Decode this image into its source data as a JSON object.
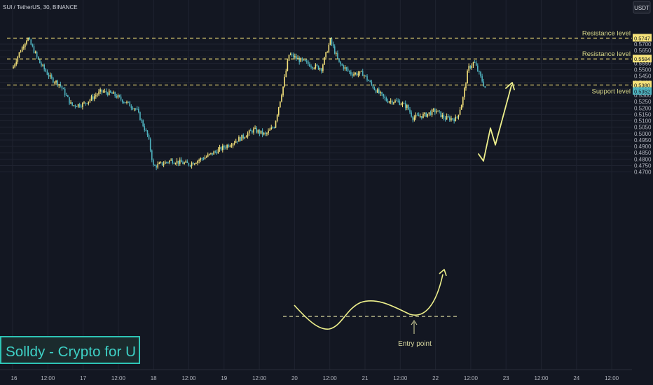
{
  "header": {
    "symbol": "SUI / TetherUS, 30, BINANCE",
    "currency_label": "USDT"
  },
  "branding": {
    "watermark": "Solldy - Crypto for U"
  },
  "colors": {
    "bg": "#131722",
    "up": "#f5e27a",
    "down": "#4fb3bf",
    "level": "#f5e27a",
    "text": "#b2b5be",
    "arrow": "#eef08c",
    "brand": "#2ec4b6"
  },
  "price_axis": {
    "ticks": [
      "0.5700",
      "0.5650",
      "0.5600",
      "0.5550",
      "0.5500",
      "0.5450",
      "0.5400",
      "0.5350",
      "0.5300",
      "0.5250",
      "0.5200",
      "0.5150",
      "0.5100",
      "0.5050",
      "0.5000",
      "0.4950",
      "0.4900",
      "0.4850",
      "0.4800",
      "0.4750",
      "0.4700"
    ],
    "badges": [
      "0.5747",
      "0.5584",
      "0.5380",
      "0.5352"
    ]
  },
  "time_axis": {
    "labels": [
      "16",
      "12:00",
      "17",
      "12:00",
      "18",
      "12:00",
      "19",
      "12:00",
      "20",
      "12:00",
      "21",
      "12:00",
      "22",
      "12:00",
      "23",
      "12:00",
      "24",
      "12:00"
    ]
  },
  "levels": [
    {
      "label": "Resistance level",
      "price": 0.5747
    },
    {
      "label": "Resistance level",
      "price": 0.5584
    },
    {
      "label": "Support level",
      "price": 0.538
    }
  ],
  "annotations": {
    "entry_point": "Entry point"
  },
  "chart_data": {
    "type": "candlestick",
    "symbol": "SUI / TetherUS",
    "interval": "30",
    "exchange": "BINANCE",
    "ylim": [
      0.4685,
      0.5835
    ],
    "grid": true,
    "close_path_points": [
      {
        "t": "16 00:00",
        "price": 0.551
      },
      {
        "t": "16 02:00",
        "price": 0.562
      },
      {
        "t": "16 05:00",
        "price": 0.575
      },
      {
        "t": "16 07:00",
        "price": 0.566
      },
      {
        "t": "16 09:00",
        "price": 0.556
      },
      {
        "t": "16 13:00",
        "price": 0.543
      },
      {
        "t": "16 16:00",
        "price": 0.5385
      },
      {
        "t": "16 20:00",
        "price": 0.522
      },
      {
        "t": "17 00:00",
        "price": 0.523
      },
      {
        "t": "17 06:00",
        "price": 0.533
      },
      {
        "t": "17 10:00",
        "price": 0.531
      },
      {
        "t": "17 14:00",
        "price": 0.525
      },
      {
        "t": "17 18:00",
        "price": 0.519
      },
      {
        "t": "17 22:00",
        "price": 0.497
      },
      {
        "t": "18 00:00",
        "price": 0.474
      },
      {
        "t": "18 06:00",
        "price": 0.479
      },
      {
        "t": "18 12:00",
        "price": 0.476
      },
      {
        "t": "18 18:00",
        "price": 0.482
      },
      {
        "t": "19 00:00",
        "price": 0.4895
      },
      {
        "t": "19 06:00",
        "price": 0.497
      },
      {
        "t": "19 10:00",
        "price": 0.503
      },
      {
        "t": "19 14:00",
        "price": 0.499
      },
      {
        "t": "19 17:00",
        "price": 0.506
      },
      {
        "t": "19 20:00",
        "price": 0.537
      },
      {
        "t": "19 22:00",
        "price": 0.562
      },
      {
        "t": "20 02:00",
        "price": 0.557
      },
      {
        "t": "20 06:00",
        "price": 0.553
      },
      {
        "t": "20 09:00",
        "price": 0.551
      },
      {
        "t": "20 12:00",
        "price": 0.573
      },
      {
        "t": "20 15:00",
        "price": 0.555
      },
      {
        "t": "20 19:00",
        "price": 0.547
      },
      {
        "t": "20 23:00",
        "price": 0.547
      },
      {
        "t": "21 03:00",
        "price": 0.535
      },
      {
        "t": "21 07:00",
        "price": 0.526
      },
      {
        "t": "21 11:00",
        "price": 0.525
      },
      {
        "t": "21 14:00",
        "price": 0.521
      },
      {
        "t": "21 16:00",
        "price": 0.5125
      },
      {
        "t": "21 20:00",
        "price": 0.5145
      },
      {
        "t": "22 00:00",
        "price": 0.518
      },
      {
        "t": "22 03:00",
        "price": 0.512
      },
      {
        "t": "22 07:00",
        "price": 0.5115
      },
      {
        "t": "22 09:00",
        "price": 0.525
      },
      {
        "t": "22 11:00",
        "price": 0.551
      },
      {
        "t": "22 13:00",
        "price": 0.556
      },
      {
        "t": "22 15:00",
        "price": 0.545
      },
      {
        "t": "22 17:00",
        "price": 0.5345
      }
    ]
  }
}
